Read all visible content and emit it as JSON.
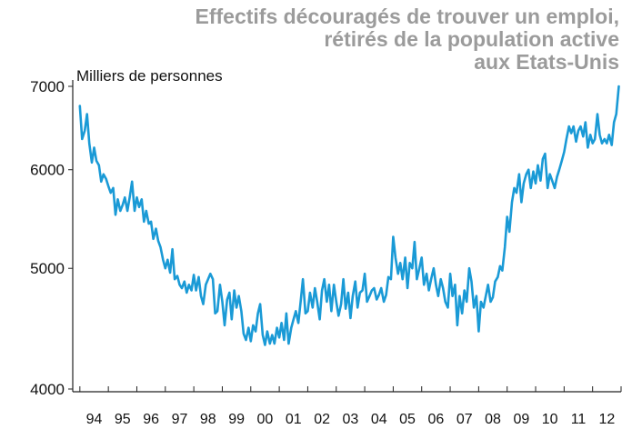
{
  "chart_data": {
    "type": "line",
    "title": "Effectifs découragés de trouver un emploi,\nrétirés de la population active\naux Etats-Unis",
    "ylabel": "Milliers de personnes",
    "xlabel": "",
    "yscale": "log",
    "ylim": [
      4000,
      7000
    ],
    "y_ticks": [
      4000,
      5000,
      6000,
      7000
    ],
    "x_tick_labels": [
      "94",
      "95",
      "96",
      "97",
      "98",
      "99",
      "00",
      "01",
      "02",
      "03",
      "04",
      "05",
      "06",
      "07",
      "08",
      "09",
      "10",
      "11",
      "12"
    ],
    "grid": false,
    "color": "#1a9ad6",
    "series": [
      {
        "values": [
          [
            1994.0,
            6750
          ],
          [
            1994.08,
            6350
          ],
          [
            1994.17,
            6450
          ],
          [
            1994.25,
            6650
          ],
          [
            1994.33,
            6300
          ],
          [
            1994.42,
            6080
          ],
          [
            1994.5,
            6250
          ],
          [
            1994.58,
            6100
          ],
          [
            1994.67,
            6050
          ],
          [
            1994.75,
            5870
          ],
          [
            1994.83,
            5950
          ],
          [
            1994.92,
            5900
          ],
          [
            1995.0,
            5820
          ],
          [
            1995.08,
            5750
          ],
          [
            1995.17,
            5800
          ],
          [
            1995.25,
            5520
          ],
          [
            1995.33,
            5680
          ],
          [
            1995.42,
            5560
          ],
          [
            1995.5,
            5620
          ],
          [
            1995.58,
            5700
          ],
          [
            1995.67,
            5560
          ],
          [
            1995.75,
            5700
          ],
          [
            1995.83,
            5870
          ],
          [
            1995.92,
            5560
          ],
          [
            1996.0,
            5700
          ],
          [
            1996.08,
            5600
          ],
          [
            1996.17,
            5680
          ],
          [
            1996.25,
            5450
          ],
          [
            1996.33,
            5560
          ],
          [
            1996.42,
            5430
          ],
          [
            1996.5,
            5450
          ],
          [
            1996.58,
            5280
          ],
          [
            1996.67,
            5380
          ],
          [
            1996.75,
            5260
          ],
          [
            1996.83,
            5200
          ],
          [
            1996.92,
            5080
          ],
          [
            1997.0,
            5000
          ],
          [
            1997.08,
            5080
          ],
          [
            1997.17,
            4960
          ],
          [
            1997.25,
            5180
          ],
          [
            1997.33,
            4900
          ],
          [
            1997.42,
            4930
          ],
          [
            1997.5,
            4850
          ],
          [
            1997.58,
            4820
          ],
          [
            1997.67,
            4880
          ],
          [
            1997.75,
            4780
          ],
          [
            1997.83,
            4850
          ],
          [
            1997.92,
            4800
          ],
          [
            1998.0,
            4940
          ],
          [
            1998.08,
            4800
          ],
          [
            1998.17,
            4920
          ],
          [
            1998.25,
            4750
          ],
          [
            1998.33,
            4680
          ],
          [
            1998.42,
            4850
          ],
          [
            1998.5,
            4900
          ],
          [
            1998.58,
            4950
          ],
          [
            1998.67,
            4900
          ],
          [
            1998.75,
            4600
          ],
          [
            1998.83,
            4620
          ],
          [
            1998.92,
            4850
          ],
          [
            1999.0,
            4700
          ],
          [
            1999.08,
            4500
          ],
          [
            1999.17,
            4720
          ],
          [
            1999.25,
            4780
          ],
          [
            1999.33,
            4550
          ],
          [
            1999.42,
            4800
          ],
          [
            1999.5,
            4650
          ],
          [
            1999.58,
            4750
          ],
          [
            1999.67,
            4620
          ],
          [
            1999.75,
            4430
          ],
          [
            1999.83,
            4380
          ],
          [
            1999.92,
            4480
          ],
          [
            2000.0,
            4370
          ],
          [
            2000.08,
            4500
          ],
          [
            2000.17,
            4450
          ],
          [
            2000.25,
            4600
          ],
          [
            2000.33,
            4680
          ],
          [
            2000.42,
            4420
          ],
          [
            2000.5,
            4340
          ],
          [
            2000.58,
            4450
          ],
          [
            2000.67,
            4350
          ],
          [
            2000.75,
            4420
          ],
          [
            2000.83,
            4350
          ],
          [
            2000.92,
            4480
          ],
          [
            2001.0,
            4400
          ],
          [
            2001.08,
            4520
          ],
          [
            2001.17,
            4380
          ],
          [
            2001.25,
            4600
          ],
          [
            2001.33,
            4350
          ],
          [
            2001.42,
            4480
          ],
          [
            2001.5,
            4550
          ],
          [
            2001.58,
            4620
          ],
          [
            2001.67,
            4520
          ],
          [
            2001.75,
            4700
          ],
          [
            2001.83,
            4900
          ],
          [
            2001.92,
            4600
          ],
          [
            2002.0,
            4620
          ],
          [
            2002.08,
            4780
          ],
          [
            2002.17,
            4650
          ],
          [
            2002.25,
            4820
          ],
          [
            2002.33,
            4700
          ],
          [
            2002.42,
            4550
          ],
          [
            2002.5,
            4800
          ],
          [
            2002.58,
            4900
          ],
          [
            2002.67,
            4700
          ],
          [
            2002.75,
            4850
          ],
          [
            2002.83,
            4620
          ],
          [
            2002.92,
            4850
          ],
          [
            2003.0,
            4700
          ],
          [
            2003.08,
            4580
          ],
          [
            2003.17,
            4680
          ],
          [
            2003.25,
            4900
          ],
          [
            2003.33,
            4640
          ],
          [
            2003.42,
            4780
          ],
          [
            2003.5,
            4560
          ],
          [
            2003.58,
            4750
          ],
          [
            2003.67,
            4880
          ],
          [
            2003.75,
            4650
          ],
          [
            2003.83,
            4780
          ],
          [
            2003.92,
            4800
          ],
          [
            2004.0,
            4950
          ],
          [
            2004.08,
            4700
          ],
          [
            2004.17,
            4750
          ],
          [
            2004.25,
            4800
          ],
          [
            2004.33,
            4820
          ],
          [
            2004.42,
            4720
          ],
          [
            2004.5,
            4760
          ],
          [
            2004.58,
            4820
          ],
          [
            2004.67,
            4700
          ],
          [
            2004.75,
            4760
          ],
          [
            2004.83,
            4920
          ],
          [
            2004.92,
            4900
          ],
          [
            2005.0,
            5300
          ],
          [
            2005.08,
            5100
          ],
          [
            2005.17,
            4950
          ],
          [
            2005.25,
            5050
          ],
          [
            2005.33,
            4900
          ],
          [
            2005.42,
            5100
          ],
          [
            2005.5,
            4820
          ],
          [
            2005.58,
            5050
          ],
          [
            2005.67,
            5000
          ],
          [
            2005.75,
            5250
          ],
          [
            2005.83,
            4900
          ],
          [
            2005.92,
            5000
          ],
          [
            2006.0,
            5100
          ],
          [
            2006.08,
            4850
          ],
          [
            2006.17,
            4950
          ],
          [
            2006.25,
            4800
          ],
          [
            2006.33,
            4900
          ],
          [
            2006.42,
            5000
          ],
          [
            2006.5,
            4850
          ],
          [
            2006.58,
            4750
          ],
          [
            2006.67,
            4900
          ],
          [
            2006.75,
            4820
          ],
          [
            2006.83,
            4700
          ],
          [
            2006.92,
            4650
          ],
          [
            2007.0,
            4950
          ],
          [
            2007.08,
            4750
          ],
          [
            2007.17,
            4850
          ],
          [
            2007.25,
            4500
          ],
          [
            2007.33,
            4750
          ],
          [
            2007.42,
            4600
          ],
          [
            2007.5,
            4800
          ],
          [
            2007.58,
            4700
          ],
          [
            2007.67,
            5000
          ],
          [
            2007.75,
            4880
          ],
          [
            2007.83,
            4650
          ],
          [
            2007.92,
            4750
          ],
          [
            2008.0,
            4450
          ],
          [
            2008.08,
            4700
          ],
          [
            2008.17,
            4650
          ],
          [
            2008.25,
            4750
          ],
          [
            2008.33,
            4850
          ],
          [
            2008.42,
            4700
          ],
          [
            2008.5,
            4740
          ],
          [
            2008.58,
            4880
          ],
          [
            2008.67,
            4920
          ],
          [
            2008.75,
            5020
          ],
          [
            2008.83,
            4980
          ],
          [
            2008.92,
            5200
          ],
          [
            2009.0,
            5500
          ],
          [
            2009.08,
            5350
          ],
          [
            2009.17,
            5650
          ],
          [
            2009.25,
            5800
          ],
          [
            2009.33,
            5750
          ],
          [
            2009.42,
            5950
          ],
          [
            2009.5,
            5650
          ],
          [
            2009.58,
            5850
          ],
          [
            2009.67,
            5950
          ],
          [
            2009.75,
            6000
          ],
          [
            2009.83,
            5800
          ],
          [
            2009.92,
            5980
          ],
          [
            2010.0,
            5850
          ],
          [
            2010.08,
            6050
          ],
          [
            2010.17,
            5880
          ],
          [
            2010.25,
            6120
          ],
          [
            2010.33,
            6180
          ],
          [
            2010.42,
            5800
          ],
          [
            2010.5,
            5950
          ],
          [
            2010.58,
            5880
          ],
          [
            2010.67,
            5800
          ],
          [
            2010.75,
            5920
          ],
          [
            2010.83,
            6000
          ],
          [
            2010.92,
            6100
          ],
          [
            2011.0,
            6200
          ],
          [
            2011.08,
            6350
          ],
          [
            2011.17,
            6500
          ],
          [
            2011.25,
            6420
          ],
          [
            2011.33,
            6500
          ],
          [
            2011.42,
            6320
          ],
          [
            2011.5,
            6450
          ],
          [
            2011.58,
            6500
          ],
          [
            2011.67,
            6380
          ],
          [
            2011.75,
            6550
          ],
          [
            2011.83,
            6250
          ],
          [
            2011.92,
            6400
          ],
          [
            2012.0,
            6300
          ],
          [
            2012.08,
            6350
          ],
          [
            2012.17,
            6650
          ],
          [
            2012.25,
            6400
          ],
          [
            2012.33,
            6300
          ],
          [
            2012.42,
            6350
          ],
          [
            2012.5,
            6300
          ],
          [
            2012.58,
            6400
          ],
          [
            2012.67,
            6280
          ],
          [
            2012.75,
            6550
          ],
          [
            2012.83,
            6650
          ],
          [
            2012.92,
            7000
          ]
        ]
      }
    ]
  }
}
